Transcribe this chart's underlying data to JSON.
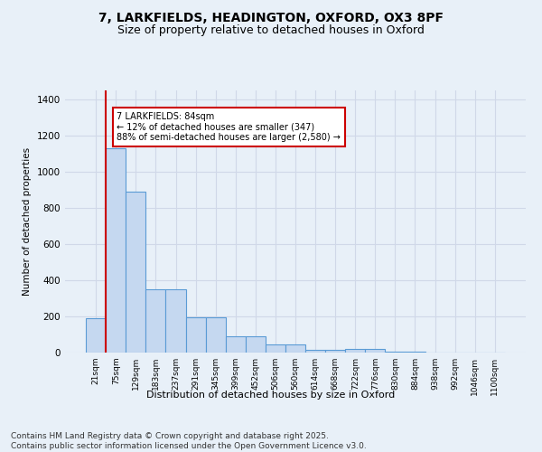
{
  "title_line1": "7, LARKFIELDS, HEADINGTON, OXFORD, OX3 8PF",
  "title_line2": "Size of property relative to detached houses in Oxford",
  "xlabel": "Distribution of detached houses by size in Oxford",
  "ylabel": "Number of detached properties",
  "bin_labels": [
    "21sqm",
    "75sqm",
    "129sqm",
    "183sqm",
    "237sqm",
    "291sqm",
    "345sqm",
    "399sqm",
    "452sqm",
    "506sqm",
    "560sqm",
    "614sqm",
    "668sqm",
    "722sqm",
    "776sqm",
    "830sqm",
    "884sqm",
    "938sqm",
    "992sqm",
    "1046sqm",
    "1100sqm"
  ],
  "bar_values": [
    190,
    1130,
    890,
    350,
    350,
    195,
    195,
    90,
    90,
    45,
    45,
    15,
    15,
    20,
    20,
    5,
    5,
    0,
    0,
    0,
    0
  ],
  "bar_color": "#c5d8f0",
  "bar_edge_color": "#5a9bd5",
  "vline_color": "#cc0000",
  "annotation_text": "7 LARKFIELDS: 84sqm\n← 12% of detached houses are smaller (347)\n88% of semi-detached houses are larger (2,580) →",
  "annotation_box_color": "#ffffff",
  "annotation_box_edge": "#cc0000",
  "ylim": [
    0,
    1450
  ],
  "yticks": [
    0,
    200,
    400,
    600,
    800,
    1000,
    1200,
    1400
  ],
  "background_color": "#e8f0f8",
  "grid_color": "#d0d8e8",
  "footnote": "Contains HM Land Registry data © Crown copyright and database right 2025.\nContains public sector information licensed under the Open Government Licence v3.0.",
  "title_fontsize": 10,
  "subtitle_fontsize": 9,
  "footnote_fontsize": 6.5
}
